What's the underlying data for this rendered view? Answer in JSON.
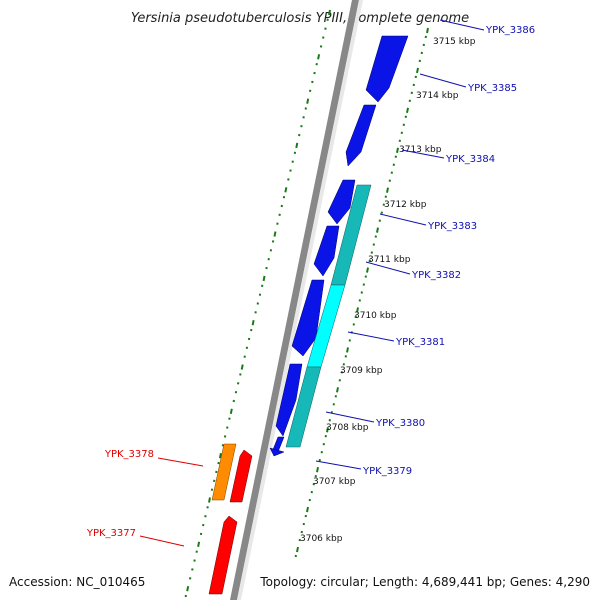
{
  "title": "Yersinia pseudotuberculosis YPIII, complete genome",
  "footer": {
    "accession": "Accession: NC_010465",
    "topology": "Topology: circular; Length: 4,689,441 bp; Genes: 4,290"
  },
  "colors": {
    "forward_cds": "#0a14e6",
    "reverse_cds": "#ff0000",
    "reverse_gene_orange": "#ff8c00",
    "rna_teal": "#17b8b8",
    "rna_light": "#00ffff",
    "backbone": "#888888",
    "tick_dots": "#1a7a1a",
    "forward_label": "#1010b0",
    "reverse_label": "#e00000"
  },
  "ticks": [
    "3715 kbp",
    "3714 kbp",
    "3713 kbp",
    "3712 kbp",
    "3711 kbp",
    "3710 kbp",
    "3709 kbp",
    "3708 kbp",
    "3707 kbp",
    "3706 kbp"
  ],
  "genes": [
    {
      "label": "YPK_3386",
      "strand": "forward"
    },
    {
      "label": "YPK_3385",
      "strand": "forward"
    },
    {
      "label": "YPK_3384",
      "strand": "forward"
    },
    {
      "label": "YPK_3383",
      "strand": "forward"
    },
    {
      "label": "YPK_3382",
      "strand": "forward"
    },
    {
      "label": "YPK_3381",
      "strand": "forward"
    },
    {
      "label": "YPK_3380",
      "strand": "forward"
    },
    {
      "label": "YPK_3379",
      "strand": "forward"
    },
    {
      "label": "YPK_3378",
      "strand": "reverse"
    },
    {
      "label": "YPK_3377",
      "strand": "reverse"
    }
  ]
}
